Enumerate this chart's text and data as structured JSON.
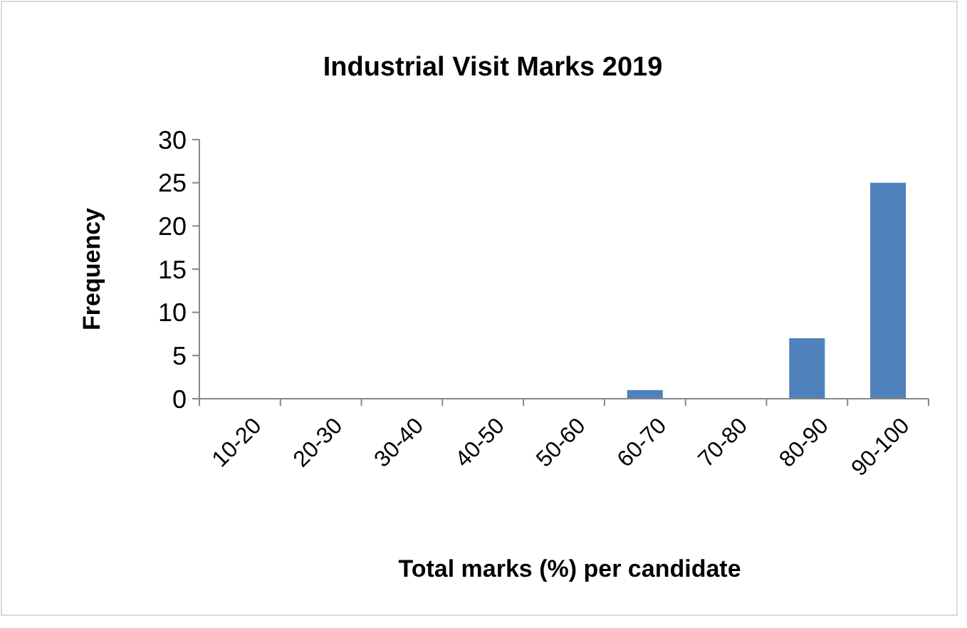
{
  "chart_data": {
    "type": "bar",
    "title": "Industrial Visit Marks 2019",
    "xlabel": "Total marks (%) per candidate",
    "ylabel": "Frequency",
    "categories": [
      "10-20",
      "20-30",
      "30-40",
      "40-50",
      "50-60",
      "60-70",
      "70-80",
      "80-90",
      "90-100"
    ],
    "values": [
      0,
      0,
      0,
      0,
      0,
      1,
      0,
      7,
      25
    ],
    "color": "#4f81bd",
    "ylim": [
      0,
      30
    ],
    "yticks": [
      0,
      5,
      10,
      15,
      20,
      25,
      30
    ],
    "grid": false
  }
}
